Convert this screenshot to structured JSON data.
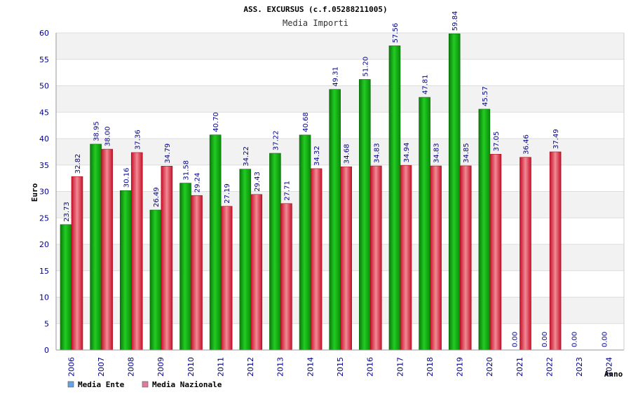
{
  "chart_data": {
    "type": "bar",
    "title": "ASS. EXCURSUS (c.f.05288211005)",
    "subtitle": "Media Importi",
    "xlabel": "Anno",
    "ylabel": "Euro",
    "ylim": [
      0,
      60
    ],
    "yticks": [
      "0",
      "5",
      "10",
      "15",
      "20",
      "25",
      "30",
      "35",
      "40",
      "45",
      "50",
      "55",
      "60"
    ],
    "categories": [
      "2006",
      "2007",
      "2008",
      "2009",
      "2010",
      "2011",
      "2012",
      "2013",
      "2014",
      "2015",
      "2016",
      "2017",
      "2018",
      "2019",
      "2020",
      "2021",
      "2022",
      "2023",
      "2024"
    ],
    "series": [
      {
        "name": "Media Ente",
        "color": "#1faa1f",
        "values": [
          23.73,
          38.95,
          30.16,
          26.49,
          31.58,
          40.7,
          34.22,
          37.22,
          40.68,
          49.31,
          51.2,
          57.56,
          47.81,
          59.84,
          45.57,
          0.0,
          0.0,
          0.0,
          0.0
        ],
        "labels": [
          "23.73",
          "38.95",
          "30.16",
          "26.49",
          "31.58",
          "40.70",
          "34.22",
          "37.22",
          "40.68",
          "49.31",
          "51.20",
          "57.56",
          "47.81",
          "59.84",
          "45.57",
          "0.00",
          "0.00",
          "0.00",
          "0.00"
        ]
      },
      {
        "name": "Media Nazionale",
        "color": "#e8303c",
        "values": [
          32.82,
          38.0,
          37.36,
          34.79,
          29.24,
          27.19,
          29.43,
          27.71,
          34.32,
          34.68,
          34.83,
          34.94,
          34.83,
          34.85,
          37.05,
          36.46,
          37.49,
          null,
          null
        ],
        "labels": [
          "32.82",
          "38.00",
          "37.36",
          "34.79",
          "29.24",
          "27.19",
          "29.43",
          "27.71",
          "34.32",
          "34.68",
          "34.83",
          "34.94",
          "34.83",
          "34.85",
          "37.05",
          "36.46",
          "37.49",
          "",
          ""
        ]
      }
    ],
    "legend": [
      {
        "label": "Media Ente",
        "color": "#66a3e0"
      },
      {
        "label": "Media Nazionale",
        "color": "#e07aa0"
      }
    ],
    "legend_position": "bottom-left",
    "grid": true
  }
}
